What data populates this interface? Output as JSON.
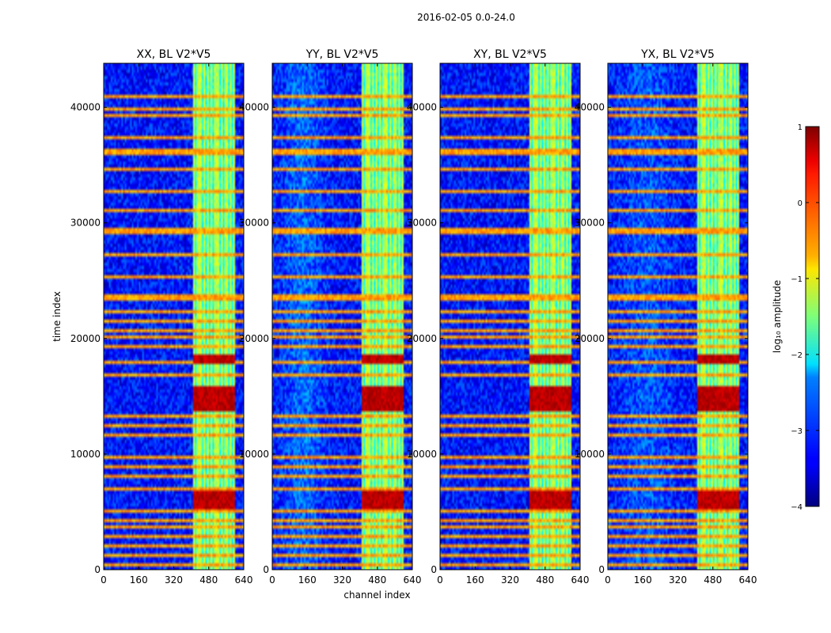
{
  "chart_data": {
    "type": "heatmap",
    "suptitle": "2016-02-05 0.0-24.0",
    "xlabel": "channel index",
    "ylabel": "time index",
    "xlim": [
      0,
      640
    ],
    "ylim": [
      0,
      43800
    ],
    "xticks": [
      "0",
      "160",
      "320",
      "480",
      "640"
    ],
    "xtick_values": [
      0,
      160,
      320,
      480,
      640
    ],
    "yticks": [
      "0",
      "10000",
      "20000",
      "30000",
      "40000"
    ],
    "ytick_values": [
      0,
      10000,
      20000,
      30000,
      40000
    ],
    "panels": [
      {
        "title": "XX, BL V2*V5",
        "show_ylabel": true,
        "show_xlabel": false
      },
      {
        "title": "YY, BL V2*V5",
        "show_ylabel": false,
        "show_xlabel": true
      },
      {
        "title": "XY, BL V2*V5",
        "show_ylabel": false,
        "show_xlabel": false
      },
      {
        "title": "YX, BL V2*V5",
        "show_ylabel": false,
        "show_xlabel": false
      }
    ],
    "colorbar": {
      "label": "log₁₀ amplitude",
      "range": [
        -4,
        1
      ],
      "ticks": [
        "1",
        "0",
        "−1",
        "−2",
        "−3",
        "−4"
      ],
      "tick_values": [
        1,
        0,
        -1,
        -2,
        -3,
        -4
      ],
      "colormap": "jet"
    },
    "features": {
      "rfi_channel_range": [
        405,
        600
      ],
      "rfi_channel_columns": [
        405,
        420,
        440,
        455,
        470,
        485,
        500,
        520,
        535,
        548,
        560,
        575,
        590
      ],
      "strong_rfi_time_blocks": [
        [
          5200,
          6800
        ],
        [
          13800,
          15800
        ],
        [
          17800,
          18600
        ]
      ],
      "horizontal_flag_times": [
        500,
        1200,
        2000,
        2800,
        3600,
        4300,
        5000,
        7100,
        8000,
        8900,
        9800,
        11600,
        12500,
        13300,
        16800,
        18000,
        19200,
        20000,
        20800,
        21600,
        22400,
        23300,
        23600,
        25400,
        27200,
        29100,
        29300,
        31000,
        32800,
        34500,
        36000,
        36200,
        37500,
        39200,
        39700,
        41000
      ],
      "background_level": -3.3,
      "rfi_level": -1.2,
      "flag_level": -0.4
    }
  }
}
